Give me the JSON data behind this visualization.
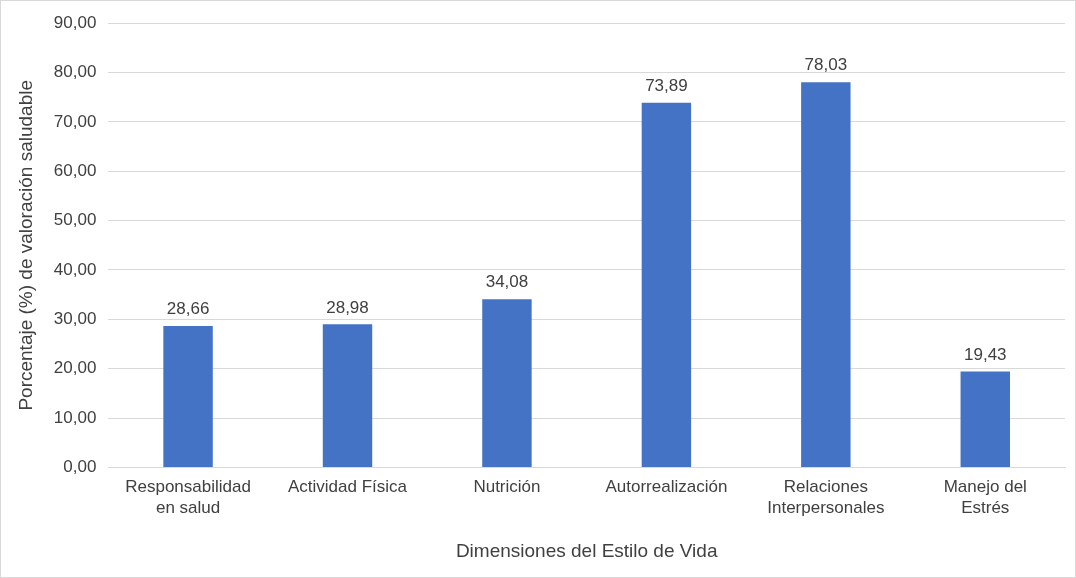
{
  "chart_data": {
    "type": "bar",
    "xlabel": "Dimensiones del Estilo de Vida",
    "ylabel": "Porcentaje (%) de valoración saludable",
    "categories": [
      "Responsabilidad\nen salud",
      "Actividad Física",
      "Nutrición",
      "Autorrealización",
      "Relaciones\nInterpersonales",
      "Manejo del\nEstrés"
    ],
    "values": [
      28.66,
      28.98,
      34.08,
      73.89,
      78.03,
      19.43
    ],
    "value_labels": [
      "28,66",
      "28,98",
      "34,08",
      "73,89",
      "78,03",
      "19,43"
    ],
    "color": "#4472c4",
    "ylim": [
      0,
      90
    ],
    "yticks": [
      {
        "value": 0,
        "label": "0,00"
      },
      {
        "value": 10,
        "label": "10,00"
      },
      {
        "value": 20,
        "label": "20,00"
      },
      {
        "value": 30,
        "label": "30,00"
      },
      {
        "value": 40,
        "label": "40,00"
      },
      {
        "value": 50,
        "label": "50,00"
      },
      {
        "value": 60,
        "label": "60,00"
      },
      {
        "value": 70,
        "label": "70,00"
      },
      {
        "value": 80,
        "label": "80,00"
      },
      {
        "value": 90,
        "label": "90,00"
      }
    ],
    "grid": "y",
    "legend": false
  }
}
